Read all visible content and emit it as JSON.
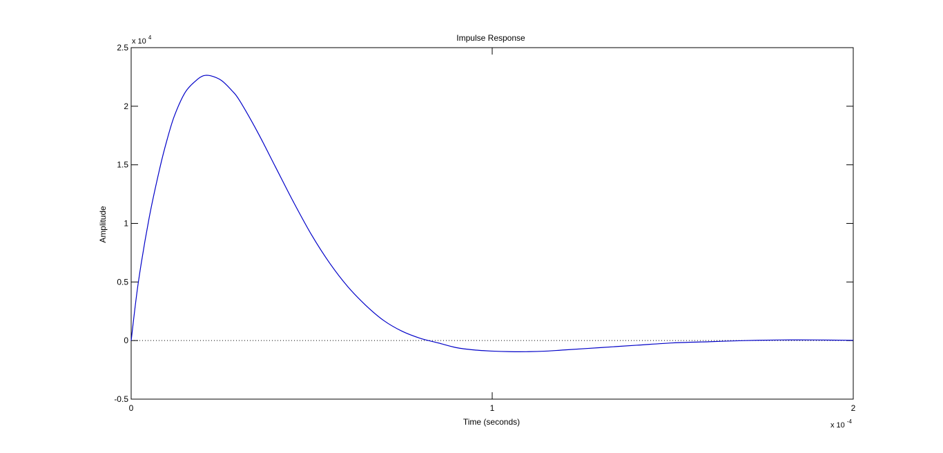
{
  "chart_data": {
    "type": "line",
    "title": "Impulse Response",
    "xlabel": "Time (seconds)",
    "ylabel": "Amplitude",
    "x_multiplier": {
      "base": "x 10",
      "exponent": "-4"
    },
    "y_multiplier": {
      "base": "x 10",
      "exponent": "4"
    },
    "xlim": [
      0,
      2
    ],
    "ylim": [
      -0.5,
      2.5
    ],
    "x_ticks": [
      "0",
      "1",
      "2"
    ],
    "y_ticks": [
      "-0.5",
      "0",
      "0.5",
      "1",
      "1.5",
      "2",
      "2.5"
    ],
    "grid": false,
    "zero_line": {
      "y": 0,
      "style": "dotted"
    },
    "series": [
      {
        "color": "#0000c8",
        "x": [
          0,
          0.02,
          0.05,
          0.08,
          0.1,
          0.12,
          0.15,
          0.18,
          0.2,
          0.22,
          0.25,
          0.28,
          0.3,
          0.35,
          0.4,
          0.45,
          0.5,
          0.55,
          0.6,
          0.65,
          0.7,
          0.75,
          0.8,
          0.85,
          0.9,
          0.95,
          1.0,
          1.05,
          1.1,
          1.15,
          1.2,
          1.3,
          1.4,
          1.5,
          1.6,
          1.7,
          1.8,
          1.9,
          2.0
        ],
        "y": [
          0,
          0.5,
          1.05,
          1.48,
          1.72,
          1.92,
          2.12,
          2.22,
          2.26,
          2.26,
          2.22,
          2.13,
          2.05,
          1.78,
          1.48,
          1.18,
          0.9,
          0.66,
          0.46,
          0.3,
          0.17,
          0.08,
          0.02,
          -0.02,
          -0.06,
          -0.08,
          -0.09,
          -0.095,
          -0.095,
          -0.09,
          -0.08,
          -0.06,
          -0.04,
          -0.02,
          -0.01,
          0.0,
          0.005,
          0.005,
          0.002
        ]
      }
    ]
  }
}
